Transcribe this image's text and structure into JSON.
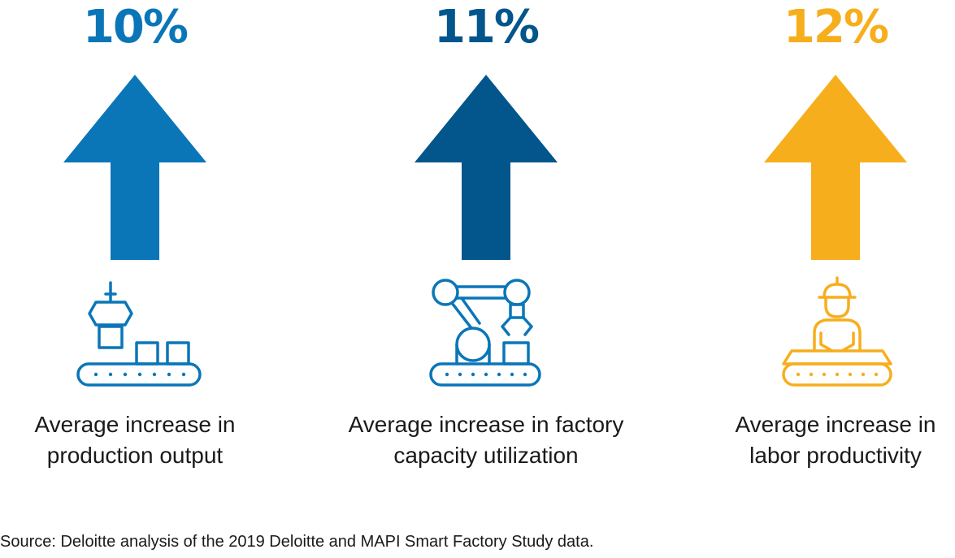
{
  "stats": [
    {
      "value": "10%",
      "color": "#0a76b8",
      "icon": "conveyor-claw-icon",
      "line1": "Average increase in",
      "line2": "production output"
    },
    {
      "value": "11%",
      "color": "#03568c",
      "icon": "robot-arm-icon",
      "line1": "Average increase in factory",
      "line2": "capacity utilization"
    },
    {
      "value": "12%",
      "color": "#f7ae1d",
      "icon": "worker-conveyor-icon",
      "line1": "Average increase in",
      "line2": "labor productivity"
    }
  ],
  "source": "Source: Deloitte analysis of the 2019 Deloitte and MAPI Smart Factory Study data."
}
